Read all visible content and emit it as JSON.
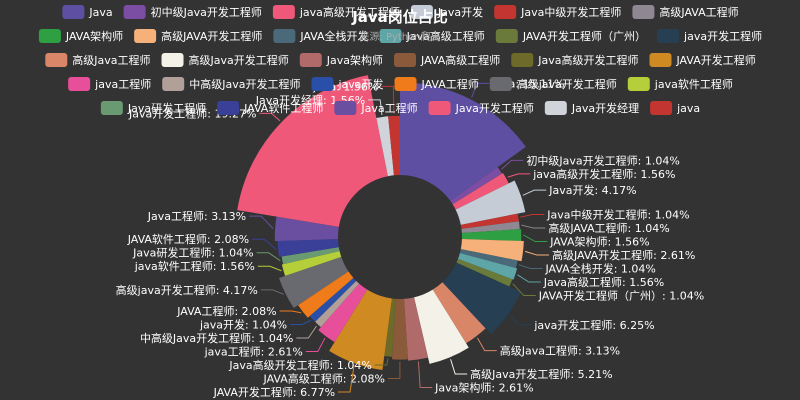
{
  "chart_data": {
    "type": "pie",
    "variant": "donut-rose",
    "title": "Java岗位占比",
    "subtitle": "来源: Python爬虫",
    "legend_placement": "top",
    "label_format": "{name}: {percent}%",
    "slices": [
      {
        "name": "Java",
        "percent": 15.11,
        "color": "#5e4fa2"
      },
      {
        "name": "初中级Java开发工程师",
        "percent": 1.04,
        "color": "#7b4ea3"
      },
      {
        "name": "java高级开发工程师",
        "percent": 1.56,
        "color": "#f0587a"
      },
      {
        "name": "Java开发",
        "percent": 4.17,
        "color": "#c5ccd6"
      },
      {
        "name": "Java中级开发工程师",
        "percent": 1.04,
        "color": "#c23531"
      },
      {
        "name": "高级JAVA工程师",
        "percent": 1.04,
        "color": "#8f8892"
      },
      {
        "name": "JAVA架构师",
        "percent": 1.56,
        "color": "#2ea043"
      },
      {
        "name": "高级JAVA开发工程师",
        "percent": 2.61,
        "color": "#f6b17a"
      },
      {
        "name": "JAVA全栈开发",
        "percent": 1.04,
        "color": "#4a6a7a"
      },
      {
        "name": "Java高级工程师",
        "percent": 1.56,
        "color": "#5ea5a8"
      },
      {
        "name": "JAVA开发工程师（广州）",
        "percent": 1.04,
        "color": "#6a7a3a"
      },
      {
        "name": "java开发工程师",
        "percent": 6.25,
        "color": "#263f52"
      },
      {
        "name": "高级Java工程师",
        "percent": 3.13,
        "color": "#d98668"
      },
      {
        "name": "高级Java开发工程师",
        "percent": 5.21,
        "color": "#f4f2e8"
      },
      {
        "name": "Java架构师",
        "percent": 2.61,
        "color": "#b06a6a"
      },
      {
        "name": "JAVA高级工程师",
        "percent": 2.08,
        "color": "#8a5a3a"
      },
      {
        "name": "Java高级开发工程师",
        "percent": 1.04,
        "color": "#6d6a2a"
      },
      {
        "name": "JAVA开发工程师",
        "percent": 6.77,
        "color": "#cf8a22"
      },
      {
        "name": "java工程师",
        "percent": 2.61,
        "color": "#e84f9a"
      },
      {
        "name": "中高级Java开发工程师",
        "percent": 1.04,
        "color": "#b0a098"
      },
      {
        "name": "java开发",
        "percent": 1.04,
        "color": "#2a4fa8"
      },
      {
        "name": "JAVA工程师",
        "percent": 2.08,
        "color": "#f07b1a"
      },
      {
        "name": "高级java开发工程师",
        "percent": 4.17,
        "color": "#686a70"
      },
      {
        "name": "java软件工程师",
        "percent": 1.56,
        "color": "#b4cf3a"
      },
      {
        "name": "Java研发工程师",
        "percent": 1.04,
        "color": "#6a9a72"
      },
      {
        "name": "JAVA软件工程师",
        "percent": 2.08,
        "color": "#3a3f98"
      },
      {
        "name": "Java工程师",
        "percent": 3.13,
        "color": "#6a4fa0"
      },
      {
        "name": "Java开发工程师",
        "percent": 19.27,
        "color": "#f0587a"
      },
      {
        "name": "Java开发经理",
        "percent": 1.56,
        "color": "#d0d4da"
      },
      {
        "name": "java",
        "percent": 1.56,
        "color": "#c23531"
      }
    ]
  }
}
